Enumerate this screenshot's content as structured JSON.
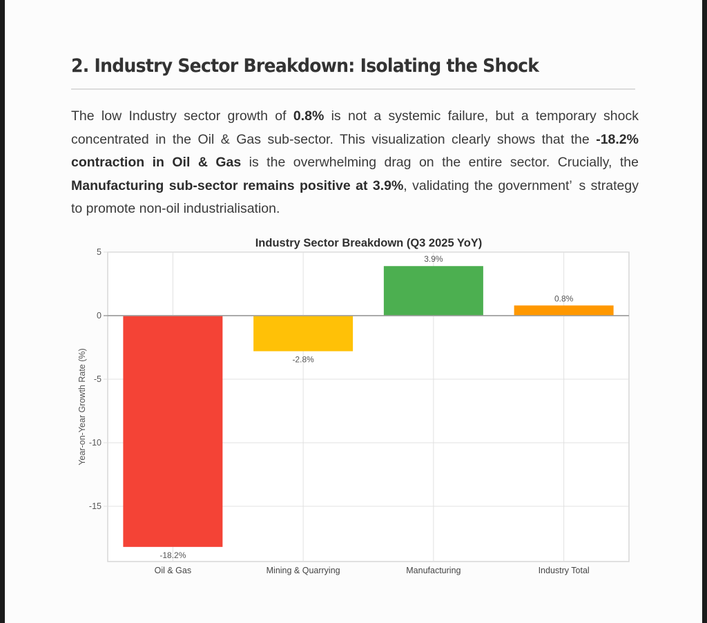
{
  "section": {
    "heading": "2. Industry Sector Breakdown: Isolating the Shock",
    "paragraph": [
      {
        "text": "The low Industry sector growth of ",
        "bold": false
      },
      {
        "text": "0.8%",
        "bold": true
      },
      {
        "text": " is not a systemic failure, but a temporary shock concentrated in the Oil & Gas sub-sector. This visualization clearly shows that the ",
        "bold": false
      },
      {
        "text": "-18.2% contraction in Oil & Gas",
        "bold": true
      },
      {
        "text": " is the overwhelming drag on the entire sector. Crucially, the ",
        "bold": false
      },
      {
        "text": "Manufacturing sub-sector remains positive at 3.9%",
        "bold": true
      },
      {
        "text": ", validating the government’ s strategy to promote non-oil industrialisation.",
        "bold": false
      }
    ]
  },
  "chart_data": {
    "type": "bar",
    "title": "Industry Sector Breakdown (Q3 2025 YoY)",
    "xlabel": "",
    "ylabel": "Year-on-Year Growth Rate (%)",
    "categories": [
      "Oil & Gas",
      "Mining & Quarrying",
      "Manufacturing",
      "Industry Total"
    ],
    "values": [
      -18.2,
      -2.8,
      3.9,
      0.8
    ],
    "data_labels": [
      "-18.2%",
      "-2.8%",
      "3.9%",
      "0.8%"
    ],
    "colors": [
      "#f44336",
      "#ffc107",
      "#4caf50",
      "#ff9800"
    ],
    "ylim": [
      -19.35,
      5
    ],
    "yticks": [
      5,
      0,
      -5,
      -10,
      -15
    ],
    "ytick_labels": [
      "5",
      "0",
      "-5",
      "-10",
      "-15"
    ],
    "grid": true,
    "legend": "none"
  }
}
